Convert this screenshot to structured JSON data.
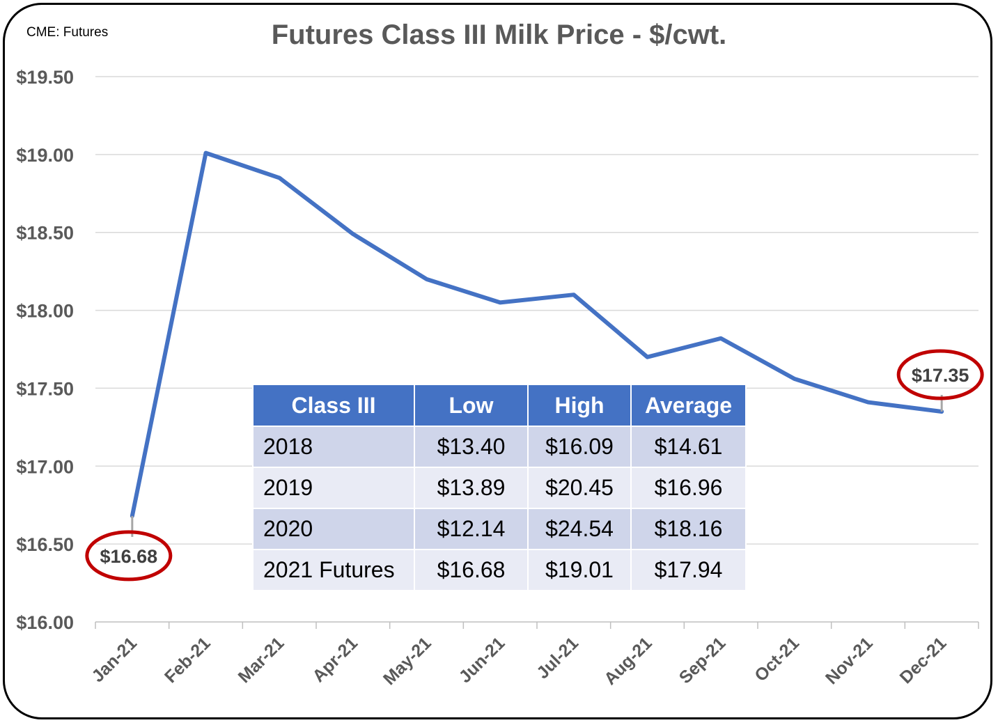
{
  "chart_data": {
    "type": "line",
    "title": "Futures Class III Milk Price - $/cwt.",
    "source_note": "CME: Futures",
    "categories": [
      "Jan-21",
      "Feb-21",
      "Mar-21",
      "Apr-21",
      "May-21",
      "Jun-21",
      "Jul-21",
      "Aug-21",
      "Sep-21",
      "Oct-21",
      "Nov-21",
      "Dec-21"
    ],
    "values": [
      16.68,
      19.01,
      18.85,
      18.49,
      18.2,
      18.05,
      18.1,
      17.7,
      17.82,
      17.56,
      17.41,
      17.35
    ],
    "ylim": [
      16.0,
      19.5
    ],
    "yticks": [
      "$16.00",
      "$16.50",
      "$17.00",
      "$17.50",
      "$18.00",
      "$18.50",
      "$19.00",
      "$19.50"
    ],
    "grid": true,
    "line_color": "#4472c4",
    "annotations": [
      {
        "category": "Jan-21",
        "label": "$16.68",
        "highlight": "#c00000"
      },
      {
        "category": "Dec-21",
        "label": "$17.35",
        "highlight": "#c00000"
      }
    ]
  },
  "table": {
    "header": [
      "Class III",
      "Low",
      "High",
      "Average"
    ],
    "rows": [
      [
        "2018",
        "$13.40",
        "$16.09",
        "$14.61"
      ],
      [
        "2019",
        "$13.89",
        "$20.45",
        "$16.96"
      ],
      [
        "2020",
        "$12.14",
        "$24.54",
        "$18.16"
      ],
      [
        "2021 Futures",
        "$16.68",
        "$19.01",
        "$17.94"
      ]
    ]
  }
}
